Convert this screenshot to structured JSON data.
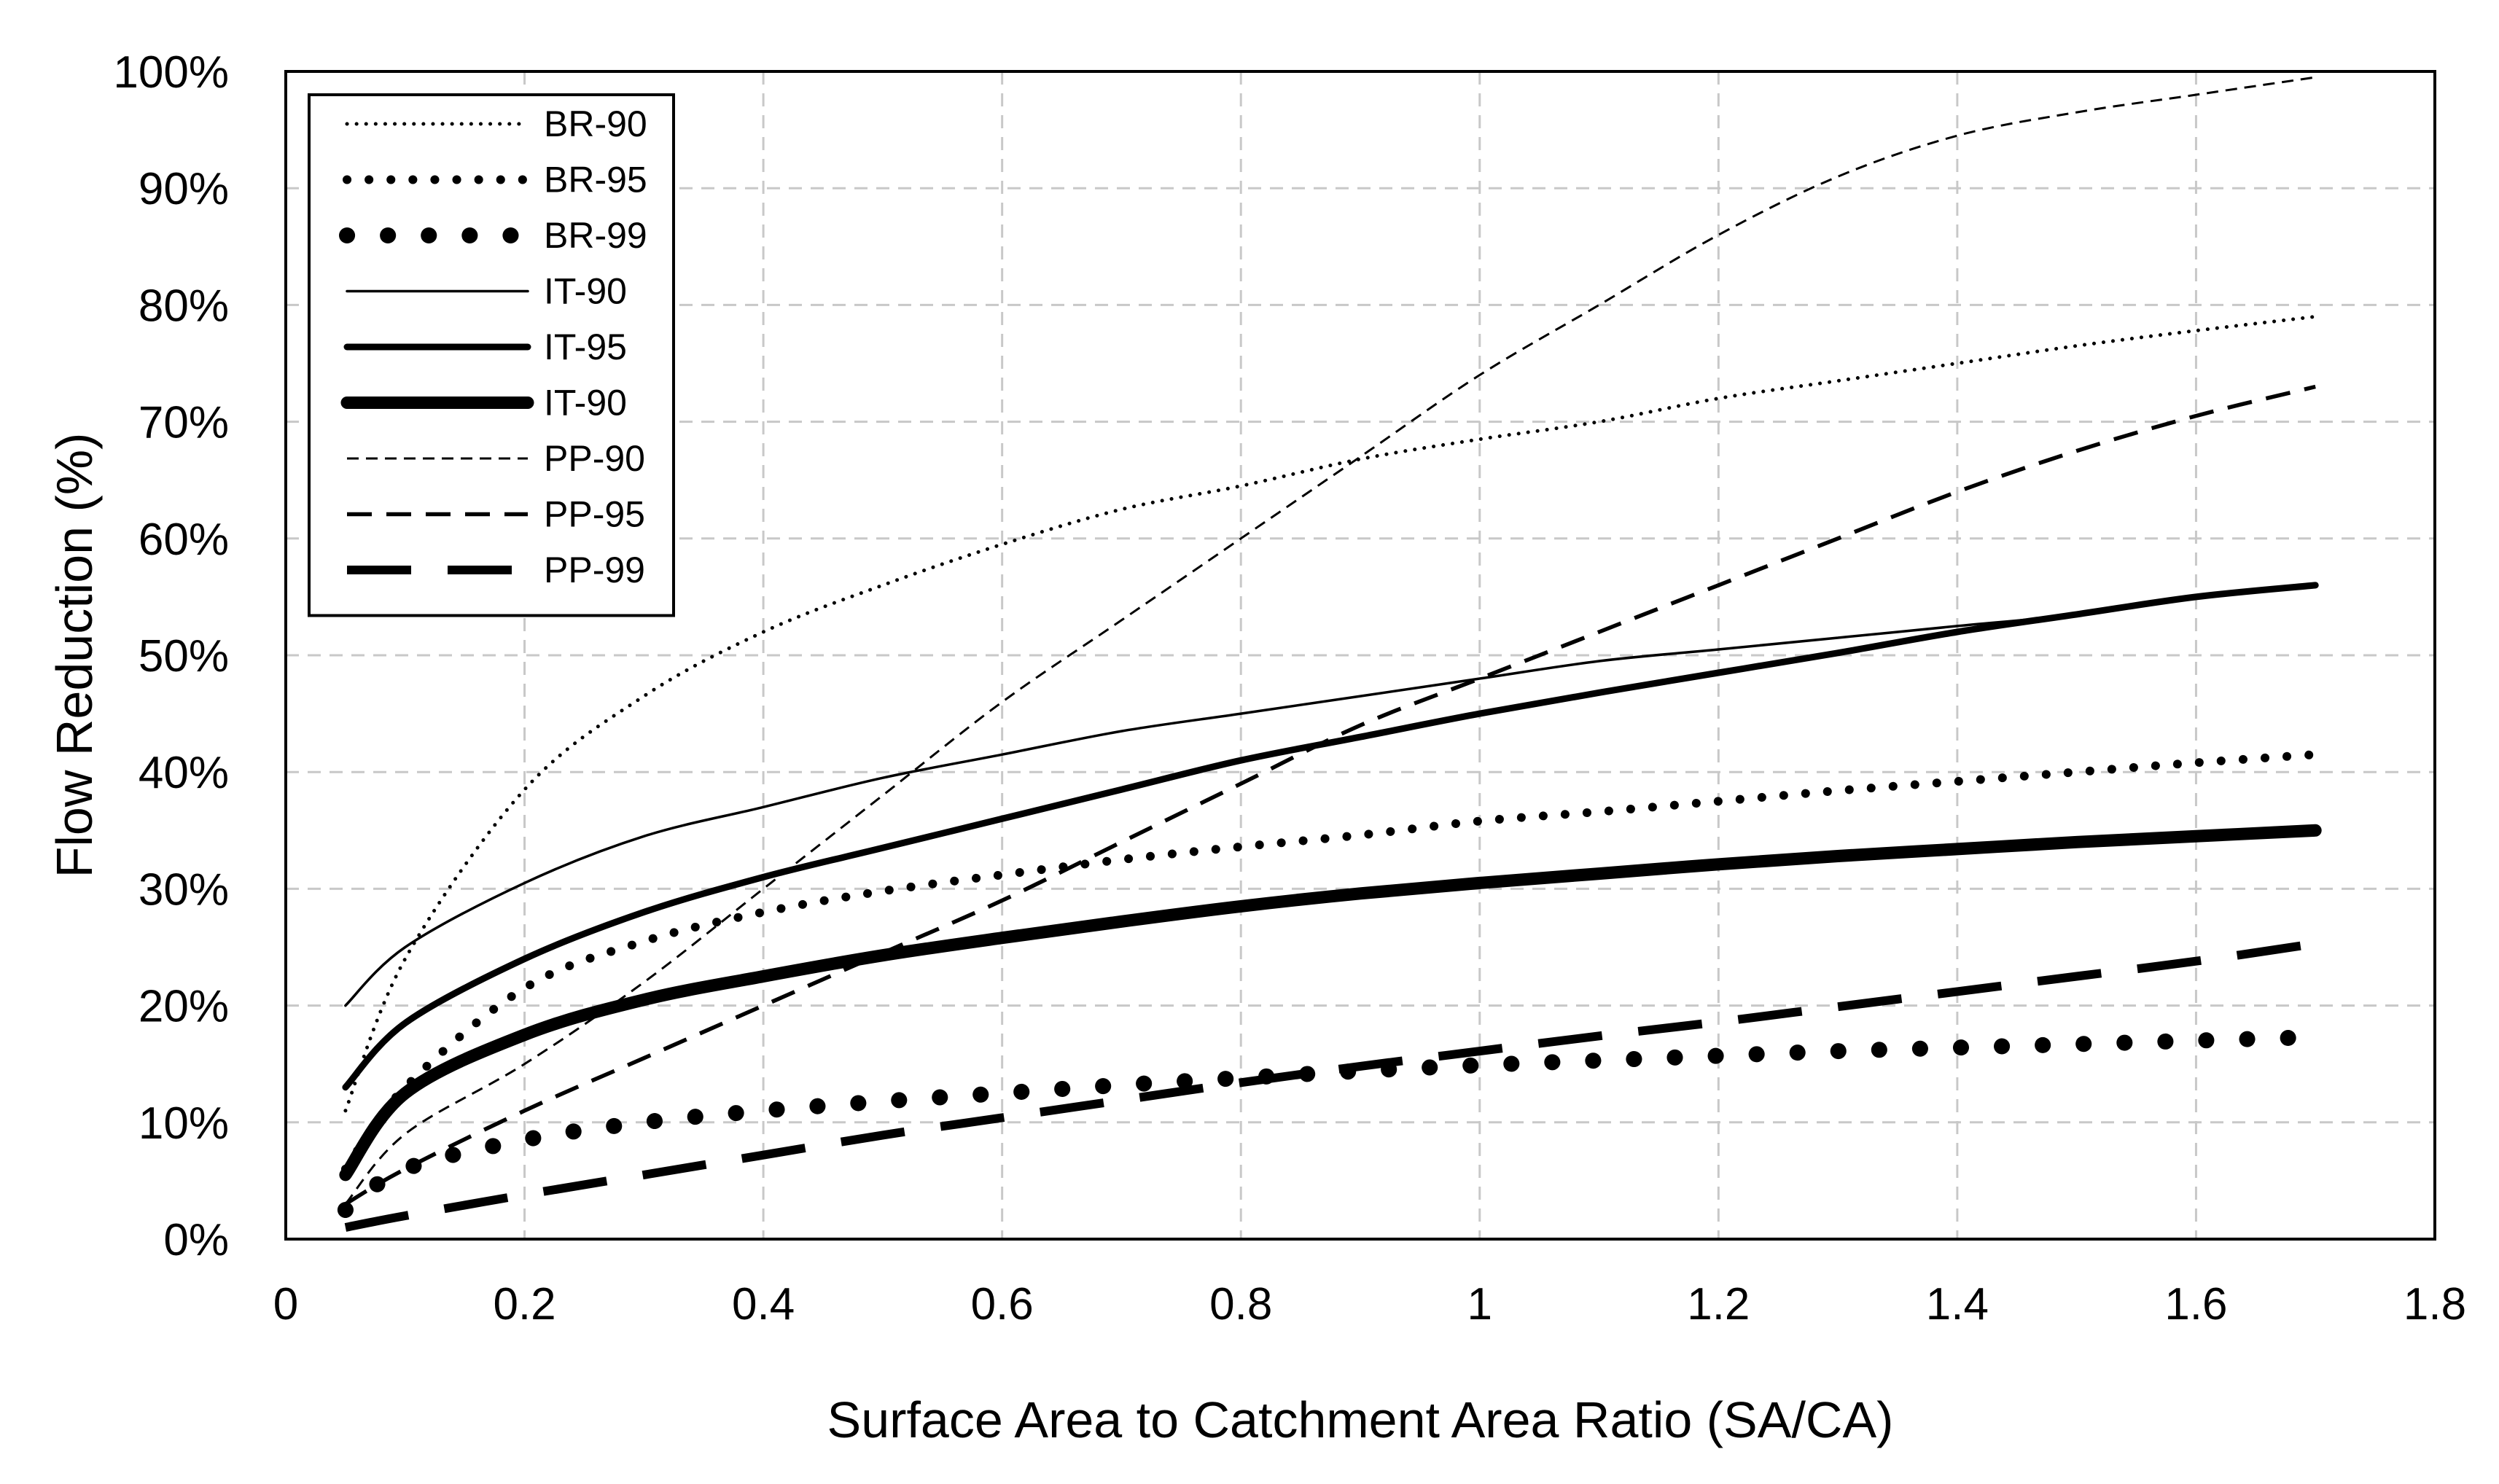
{
  "chart_data": {
    "type": "line",
    "title": "",
    "xlabel": "Surface Area to Catchment Area Ratio (SA/CA)",
    "ylabel": "Flow Reduction (%)",
    "xlim": [
      0,
      1.8
    ],
    "ylim": [
      0,
      100
    ],
    "xticks": [
      0,
      0.2,
      0.4,
      0.6,
      0.8,
      1.0,
      1.2,
      1.4,
      1.6,
      1.8
    ],
    "xtick_labels": [
      "0",
      "0.2",
      "0.4",
      "0.6",
      "0.8",
      "1",
      "1.2",
      "1.4",
      "1.6",
      "1.8"
    ],
    "yticks": [
      0,
      10,
      20,
      30,
      40,
      50,
      60,
      70,
      80,
      90,
      100
    ],
    "ytick_labels": [
      "0%",
      "10%",
      "20%",
      "30%",
      "40%",
      "50%",
      "60%",
      "70%",
      "80%",
      "90%",
      "100%"
    ],
    "grid": true,
    "legend_position": "top-left",
    "x": [
      0.05,
      0.1,
      0.2,
      0.3,
      0.4,
      0.5,
      0.6,
      0.7,
      0.8,
      0.9,
      1.0,
      1.1,
      1.2,
      1.3,
      1.4,
      1.5,
      1.6,
      1.7
    ],
    "series": [
      {
        "name": "BR-90",
        "style": "dotted",
        "weight": "thin",
        "values": [
          11.0,
          24.0,
          38.5,
          46.5,
          52.0,
          56.0,
          59.5,
          62.5,
          64.5,
          66.8,
          68.5,
          70.0,
          72.0,
          73.5,
          75.0,
          76.5,
          77.8,
          79.0
        ]
      },
      {
        "name": "BR-95",
        "style": "dotted",
        "weight": "medium",
        "values": [
          6.0,
          13.0,
          21.5,
          25.5,
          28.0,
          29.8,
          31.2,
          32.5,
          33.6,
          34.6,
          35.8,
          36.6,
          37.5,
          38.4,
          39.2,
          40.0,
          40.8,
          41.5
        ]
      },
      {
        "name": "BR-99",
        "style": "dotted",
        "weight": "heavy",
        "values": [
          2.5,
          6.0,
          8.5,
          10.0,
          11.0,
          11.8,
          12.5,
          13.2,
          13.8,
          14.4,
          14.9,
          15.3,
          15.7,
          16.1,
          16.4,
          16.7,
          17.0,
          17.3
        ]
      },
      {
        "name": "IT-90",
        "style": "solid",
        "weight": "thin",
        "values": [
          20.0,
          25.0,
          30.5,
          34.5,
          37.0,
          39.5,
          41.5,
          43.5,
          45.0,
          46.5,
          48.0,
          49.5,
          50.5,
          51.5,
          52.5,
          53.5,
          55.0,
          56.0
        ]
      },
      {
        "name": "IT-95",
        "style": "solid",
        "weight": "medium",
        "values": [
          13.0,
          18.5,
          24.0,
          28.0,
          31.0,
          33.5,
          36.0,
          38.5,
          41.0,
          43.0,
          45.0,
          46.8,
          48.5,
          50.2,
          52.0,
          53.5,
          55.0,
          56.0
        ]
      },
      {
        "name": "IT-90",
        "style": "solid",
        "weight": "heavy",
        "values": [
          5.5,
          12.5,
          17.5,
          20.5,
          22.5,
          24.3,
          25.8,
          27.2,
          28.5,
          29.6,
          30.5,
          31.3,
          32.1,
          32.8,
          33.4,
          34.0,
          34.5,
          35.0
        ]
      },
      {
        "name": "PP-90",
        "style": "dashed",
        "weight": "thin",
        "values": [
          3.0,
          9.0,
          15.0,
          22.0,
          30.0,
          38.0,
          46.0,
          53.0,
          60.0,
          67.0,
          74.0,
          80.0,
          86.0,
          91.0,
          94.5,
          96.5,
          98.0,
          99.5
        ]
      },
      {
        "name": "PP-95",
        "style": "dashed",
        "weight": "medium",
        "values": [
          3.0,
          6.0,
          11.0,
          15.5,
          20.0,
          24.5,
          29.0,
          34.0,
          39.0,
          44.0,
          48.0,
          52.0,
          56.0,
          60.0,
          64.0,
          67.5,
          70.5,
          73.0
        ]
      },
      {
        "name": "PP-99",
        "style": "longdash",
        "weight": "heavy",
        "values": [
          1.0,
          2.0,
          3.8,
          5.5,
          7.2,
          8.9,
          10.4,
          11.9,
          13.4,
          14.8,
          16.1,
          17.4,
          18.6,
          19.9,
          21.2,
          22.5,
          23.8,
          25.3
        ]
      }
    ]
  }
}
